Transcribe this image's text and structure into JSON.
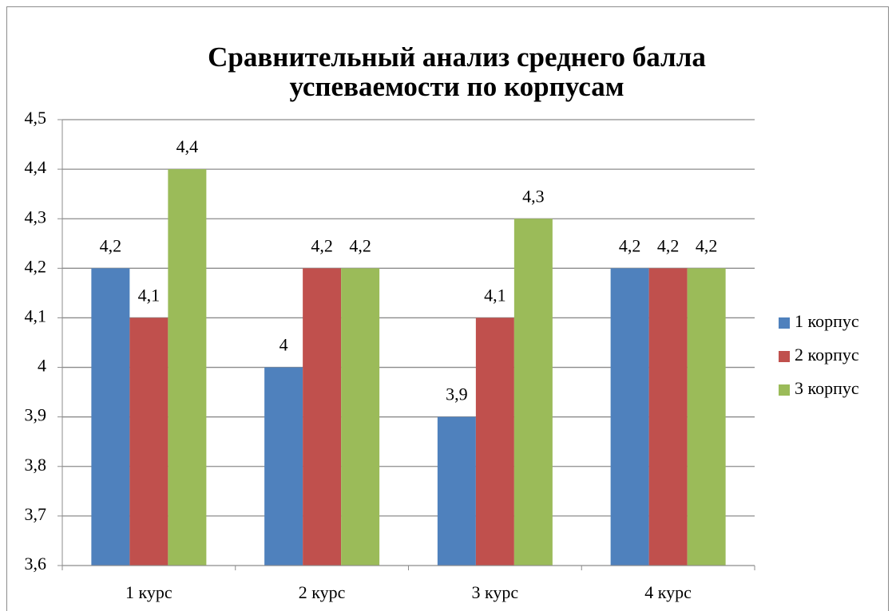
{
  "chart_data": {
    "type": "bar",
    "title": [
      "Сравнительный анализ среднего балла",
      "успеваемости по корпусам"
    ],
    "categories": [
      "1 курс",
      "2 курс",
      "3 курс",
      "4 курс"
    ],
    "series": [
      {
        "name": "1 корпус",
        "color": "#4f81bd",
        "values": [
          4.2,
          4.0,
          3.9,
          4.2
        ],
        "value_labels": [
          "4,2",
          "4",
          "3,9",
          "4,2"
        ]
      },
      {
        "name": "2 корпус",
        "color": "#c0504d",
        "values": [
          4.1,
          4.2,
          4.1,
          4.2
        ],
        "value_labels": [
          "4,1",
          "4,2",
          "4,1",
          "4,2"
        ]
      },
      {
        "name": "3 корпус",
        "color": "#9bbb59",
        "values": [
          4.4,
          4.2,
          4.3,
          4.2
        ],
        "value_labels": [
          "4,4",
          "4,2",
          "4,3",
          "4,2"
        ]
      }
    ],
    "ylim": [
      3.6,
      4.5
    ],
    "yticks": [
      {
        "value": 3.6,
        "label": "3,6"
      },
      {
        "value": 3.7,
        "label": "3,7"
      },
      {
        "value": 3.8,
        "label": "3,8"
      },
      {
        "value": 3.9,
        "label": "3,9"
      },
      4,
      {
        "value": 4.1,
        "label": "4,1"
      },
      {
        "value": 4.2,
        "label": "4,2"
      },
      {
        "value": 4.3,
        "label": "4,3"
      },
      {
        "value": 4.4,
        "label": "4,4"
      },
      {
        "value": 4.5,
        "label": "4,5"
      }
    ],
    "grid": true,
    "legend": "right"
  }
}
